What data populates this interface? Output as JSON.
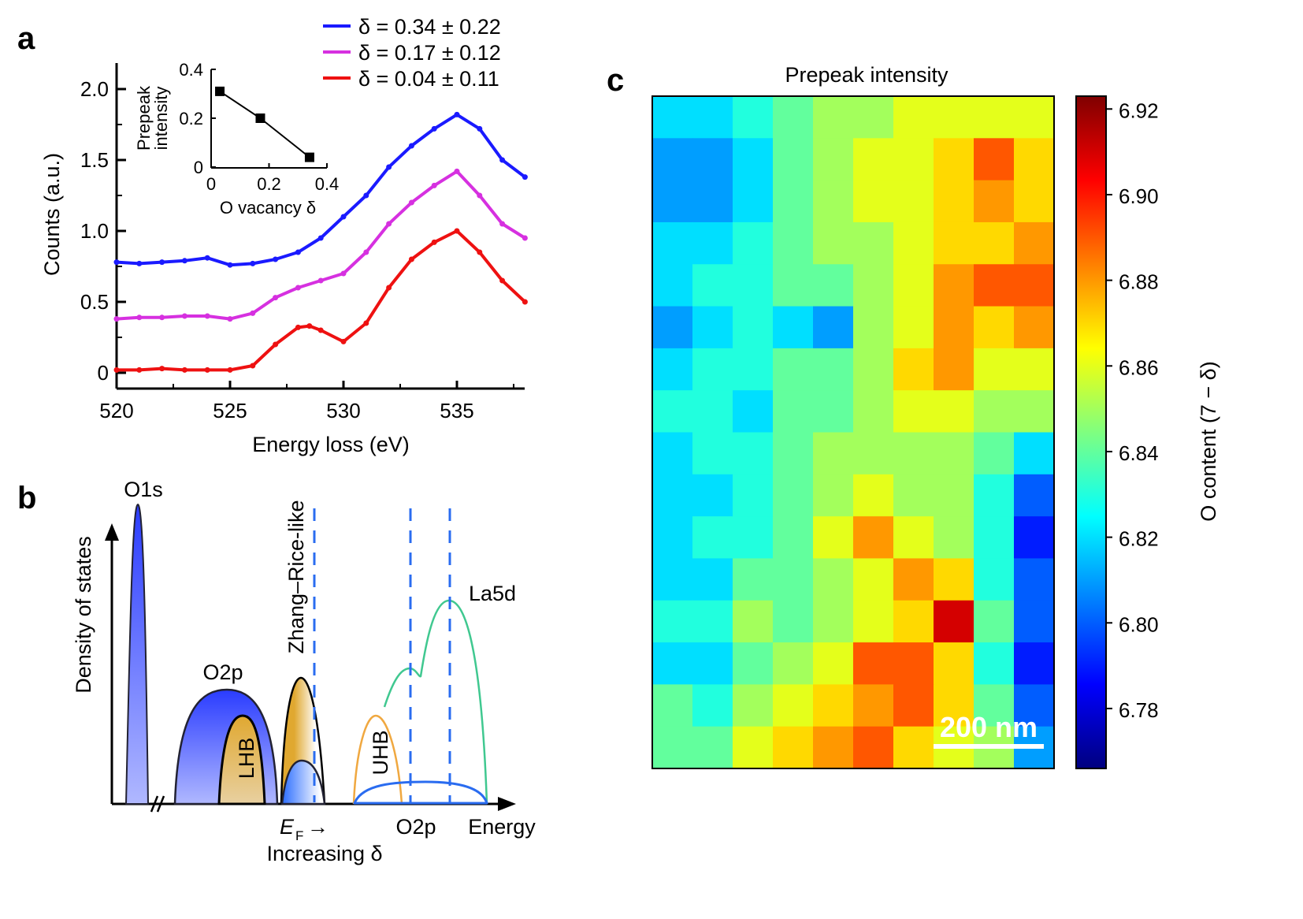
{
  "panels": {
    "a": "a",
    "b": "b",
    "c": "c"
  },
  "chart_data": [
    {
      "type": "line",
      "panel": "a",
      "xlabel": "Energy loss (eV)",
      "ylabel": "Counts (a.u.)",
      "xlim": [
        520,
        538
      ],
      "ylim": [
        -0.1,
        2.2
      ],
      "xticks": [
        "520",
        "525",
        "530",
        "535"
      ],
      "yticks": [
        "0",
        "0.5",
        "1.0",
        "1.5",
        "2.0"
      ],
      "legend_position": "top-right",
      "series": [
        {
          "name": "δ = 0.34 ± 0.22",
          "color": "#1a1aff",
          "x": [
            520,
            521,
            522,
            523,
            524,
            525,
            526,
            527,
            528,
            529,
            530,
            531,
            532,
            533,
            534,
            535,
            536,
            537,
            538
          ],
          "y": [
            0.78,
            0.77,
            0.78,
            0.79,
            0.81,
            0.76,
            0.77,
            0.8,
            0.85,
            0.95,
            1.1,
            1.25,
            1.45,
            1.6,
            1.72,
            1.82,
            1.72,
            1.5,
            1.38
          ]
        },
        {
          "name": "δ = 0.17 ± 0.12",
          "color": "#d630e0",
          "x": [
            520,
            521,
            522,
            523,
            524,
            525,
            526,
            527,
            528,
            529,
            530,
            531,
            532,
            533,
            534,
            535,
            536,
            537,
            538
          ],
          "y": [
            0.38,
            0.39,
            0.39,
            0.4,
            0.4,
            0.38,
            0.42,
            0.53,
            0.6,
            0.65,
            0.7,
            0.85,
            1.05,
            1.2,
            1.32,
            1.42,
            1.25,
            1.05,
            0.95
          ]
        },
        {
          "name": "δ = 0.04 ± 0.11",
          "color": "#ee1111",
          "x": [
            520,
            521,
            522,
            523,
            524,
            525,
            526,
            527,
            528,
            528.5,
            529,
            530,
            531,
            532,
            533,
            534,
            535,
            536,
            537,
            538
          ],
          "y": [
            0.02,
            0.02,
            0.03,
            0.02,
            0.02,
            0.02,
            0.05,
            0.2,
            0.32,
            0.33,
            0.3,
            0.22,
            0.35,
            0.6,
            0.8,
            0.92,
            1.0,
            0.85,
            0.65,
            0.5
          ]
        }
      ]
    },
    {
      "type": "scatter",
      "panel": "a-inset",
      "xlabel": "O vacancy δ",
      "ylabel": [
        "Prepeak",
        "intensity"
      ],
      "xlim": [
        0,
        0.4
      ],
      "ylim": [
        0,
        0.4
      ],
      "xticks": [
        "0",
        "0.2",
        "0.4"
      ],
      "yticks": [
        "0",
        "0.2",
        "0.4"
      ],
      "x": [
        0.03,
        0.17,
        0.34
      ],
      "y": [
        0.31,
        0.2,
        0.04
      ]
    },
    {
      "type": "heatmap",
      "panel": "c",
      "title": "Prepeak intensity",
      "colorbar_label": "O content (7 − δ)",
      "colormap": "jet",
      "clim": [
        6.766,
        6.923
      ],
      "colorbar_ticks": [
        "6.78",
        "6.80",
        "6.82",
        "6.84",
        "6.86",
        "6.88",
        "6.90",
        "6.92"
      ],
      "scale_bar": "200 nm",
      "values": [
        [
          6.82,
          6.82,
          6.83,
          6.84,
          6.85,
          6.85,
          6.86,
          6.86,
          6.86,
          6.86
        ],
        [
          6.81,
          6.81,
          6.82,
          6.84,
          6.85,
          6.86,
          6.86,
          6.87,
          6.89,
          6.87
        ],
        [
          6.81,
          6.81,
          6.82,
          6.84,
          6.85,
          6.86,
          6.86,
          6.87,
          6.88,
          6.87
        ],
        [
          6.82,
          6.82,
          6.83,
          6.84,
          6.85,
          6.85,
          6.86,
          6.87,
          6.87,
          6.88
        ],
        [
          6.82,
          6.83,
          6.83,
          6.84,
          6.84,
          6.85,
          6.86,
          6.88,
          6.89,
          6.89
        ],
        [
          6.81,
          6.82,
          6.83,
          6.82,
          6.81,
          6.85,
          6.86,
          6.88,
          6.87,
          6.88
        ],
        [
          6.82,
          6.83,
          6.83,
          6.84,
          6.84,
          6.85,
          6.87,
          6.88,
          6.86,
          6.86
        ],
        [
          6.83,
          6.83,
          6.82,
          6.84,
          6.84,
          6.85,
          6.86,
          6.86,
          6.85,
          6.85
        ],
        [
          6.82,
          6.83,
          6.83,
          6.84,
          6.85,
          6.85,
          6.85,
          6.85,
          6.84,
          6.82
        ],
        [
          6.82,
          6.82,
          6.83,
          6.84,
          6.85,
          6.86,
          6.85,
          6.85,
          6.83,
          6.8
        ],
        [
          6.82,
          6.83,
          6.83,
          6.84,
          6.86,
          6.88,
          6.86,
          6.85,
          6.83,
          6.79
        ],
        [
          6.82,
          6.82,
          6.84,
          6.84,
          6.85,
          6.86,
          6.88,
          6.87,
          6.83,
          6.8
        ],
        [
          6.83,
          6.83,
          6.85,
          6.84,
          6.85,
          6.86,
          6.87,
          6.91,
          6.84,
          6.8
        ],
        [
          6.82,
          6.82,
          6.84,
          6.85,
          6.86,
          6.89,
          6.89,
          6.87,
          6.83,
          6.79
        ],
        [
          6.84,
          6.83,
          6.85,
          6.86,
          6.87,
          6.88,
          6.89,
          6.87,
          6.84,
          6.8
        ],
        [
          6.84,
          6.84,
          6.86,
          6.87,
          6.88,
          6.89,
          6.87,
          6.86,
          6.85,
          6.81
        ]
      ]
    }
  ],
  "diagram_b": {
    "ylabel": "Density of states",
    "xlabel": "Energy",
    "labels": {
      "o1s": "O1s",
      "o2p": "O2p",
      "lhb": "LHB",
      "zr": "Zhang–Rice-like",
      "uhb": "UHB",
      "la5d": "La5d",
      "o2p_upper": "O2p",
      "ef": "E",
      "ef_sub": "F",
      "arrow": "→",
      "increasing": "Increasing δ"
    },
    "colors": {
      "o2p_fill": "#2a3cff",
      "lhb_fill": "#e0a830",
      "uhb_line": "#f0a840",
      "la5d_line": "#40c890",
      "o2p_upper_line": "#2a6cf0",
      "dashed": "#2a6cf0"
    }
  }
}
